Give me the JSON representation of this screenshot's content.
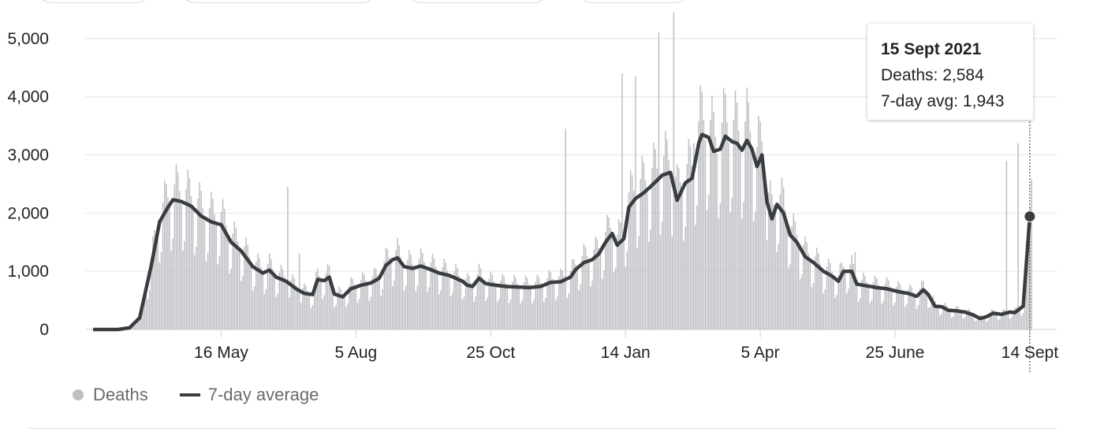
{
  "chart_data": {
    "type": "bar",
    "title": "",
    "xlabel": "",
    "ylabel": "",
    "ylim": [
      0,
      5500
    ],
    "y_ticks": [
      0,
      1000,
      2000,
      3000,
      4000,
      5000
    ],
    "y_tick_labels": [
      "0",
      "1,000",
      "2,000",
      "3,000",
      "4,000",
      "5,000"
    ],
    "x_range": [
      "2020-02-29",
      "2021-09-15"
    ],
    "x_ticks": [
      {
        "date": "2020-05-16",
        "label": "16 May"
      },
      {
        "date": "2020-08-05",
        "label": "5 Aug"
      },
      {
        "date": "2020-10-25",
        "label": "25 Oct"
      },
      {
        "date": "2021-01-14",
        "label": "14 Jan"
      },
      {
        "date": "2021-04-05",
        "label": "5 Apr"
      },
      {
        "date": "2021-06-25",
        "label": "25 June"
      },
      {
        "date": "2021-09-14",
        "label": "14 Sept"
      }
    ],
    "grid": true,
    "legend_position": "bottom-left",
    "colors": {
      "bars": "#bdbfc3",
      "line": "#3a3d40",
      "grid": "#e6e6e6"
    },
    "series": [
      {
        "name": "Deaths",
        "type": "bar",
        "note_resolution": "daily values derived from the 7-day average plus a weekly reporting pattern and visible spikes",
        "spikes": [
          {
            "date": "2020-06-25",
            "value": 2450
          },
          {
            "date": "2020-07-02",
            "value": 1300
          },
          {
            "date": "2020-12-09",
            "value": 3450
          },
          {
            "date": "2021-01-12",
            "value": 4400
          },
          {
            "date": "2021-01-20",
            "value": 4350
          },
          {
            "date": "2021-02-03",
            "value": 5100
          },
          {
            "date": "2021-02-12",
            "value": 5450
          },
          {
            "date": "2021-02-24",
            "value": 3200
          },
          {
            "date": "2021-04-08",
            "value": 2550
          },
          {
            "date": "2021-06-01",
            "value": 1330
          },
          {
            "date": "2021-08-31",
            "value": 2900
          },
          {
            "date": "2021-09-07",
            "value": 3200
          },
          {
            "date": "2021-09-15",
            "value": 2584
          }
        ]
      },
      {
        "name": "7-day average",
        "type": "line",
        "points": [
          [
            "2020-02-29",
            0
          ],
          [
            "2020-03-15",
            0
          ],
          [
            "2020-03-22",
            30
          ],
          [
            "2020-03-28",
            200
          ],
          [
            "2020-04-04",
            1100
          ],
          [
            "2020-04-09",
            1850
          ],
          [
            "2020-04-14",
            2100
          ],
          [
            "2020-04-17",
            2230
          ],
          [
            "2020-04-22",
            2200
          ],
          [
            "2020-04-28",
            2120
          ],
          [
            "2020-05-04",
            1950
          ],
          [
            "2020-05-10",
            1850
          ],
          [
            "2020-05-16",
            1800
          ],
          [
            "2020-05-22",
            1500
          ],
          [
            "2020-05-28",
            1350
          ],
          [
            "2020-06-04",
            1080
          ],
          [
            "2020-06-10",
            970
          ],
          [
            "2020-06-14",
            1020
          ],
          [
            "2020-06-18",
            900
          ],
          [
            "2020-06-24",
            830
          ],
          [
            "2020-06-30",
            700
          ],
          [
            "2020-07-05",
            620
          ],
          [
            "2020-07-10",
            600
          ],
          [
            "2020-07-13",
            860
          ],
          [
            "2020-07-17",
            840
          ],
          [
            "2020-07-20",
            900
          ],
          [
            "2020-07-23",
            610
          ],
          [
            "2020-07-28",
            560
          ],
          [
            "2020-08-02",
            700
          ],
          [
            "2020-08-08",
            760
          ],
          [
            "2020-08-14",
            800
          ],
          [
            "2020-08-19",
            880
          ],
          [
            "2020-08-23",
            1100
          ],
          [
            "2020-08-27",
            1200
          ],
          [
            "2020-08-30",
            1230
          ],
          [
            "2020-09-03",
            1080
          ],
          [
            "2020-09-08",
            1050
          ],
          [
            "2020-09-13",
            1090
          ],
          [
            "2020-09-18",
            1040
          ],
          [
            "2020-09-24",
            970
          ],
          [
            "2020-09-30",
            930
          ],
          [
            "2020-10-04",
            880
          ],
          [
            "2020-10-08",
            830
          ],
          [
            "2020-10-11",
            760
          ],
          [
            "2020-10-14",
            740
          ],
          [
            "2020-10-18",
            880
          ],
          [
            "2020-10-22",
            790
          ],
          [
            "2020-10-28",
            760
          ],
          [
            "2020-11-03",
            740
          ],
          [
            "2020-11-10",
            730
          ],
          [
            "2020-11-17",
            720
          ],
          [
            "2020-11-24",
            740
          ],
          [
            "2020-11-30",
            810
          ],
          [
            "2020-12-06",
            820
          ],
          [
            "2020-12-12",
            900
          ],
          [
            "2020-12-15",
            1030
          ],
          [
            "2020-12-20",
            1150
          ],
          [
            "2020-12-25",
            1200
          ],
          [
            "2020-12-29",
            1300
          ],
          [
            "2021-01-02",
            1500
          ],
          [
            "2021-01-06",
            1650
          ],
          [
            "2021-01-09",
            1450
          ],
          [
            "2021-01-13",
            1560
          ],
          [
            "2021-01-16",
            2100
          ],
          [
            "2021-01-20",
            2250
          ],
          [
            "2021-01-25",
            2350
          ],
          [
            "2021-01-30",
            2480
          ],
          [
            "2021-02-05",
            2650
          ],
          [
            "2021-02-10",
            2700
          ],
          [
            "2021-02-14",
            2220
          ],
          [
            "2021-02-19",
            2520
          ],
          [
            "2021-02-23",
            2600
          ],
          [
            "2021-02-27",
            3200
          ],
          [
            "2021-03-01",
            3350
          ],
          [
            "2021-03-05",
            3300
          ],
          [
            "2021-03-08",
            3060
          ],
          [
            "2021-03-12",
            3100
          ],
          [
            "2021-03-15",
            3320
          ],
          [
            "2021-03-19",
            3230
          ],
          [
            "2021-03-22",
            3200
          ],
          [
            "2021-03-25",
            3080
          ],
          [
            "2021-03-28",
            3250
          ],
          [
            "2021-03-31",
            3100
          ],
          [
            "2021-04-03",
            2800
          ],
          [
            "2021-04-06",
            3000
          ],
          [
            "2021-04-09",
            2200
          ],
          [
            "2021-04-12",
            1900
          ],
          [
            "2021-04-15",
            2150
          ],
          [
            "2021-04-19",
            2000
          ],
          [
            "2021-04-23",
            1620
          ],
          [
            "2021-04-27",
            1500
          ],
          [
            "2021-05-02",
            1250
          ],
          [
            "2021-05-07",
            1150
          ],
          [
            "2021-05-13",
            1000
          ],
          [
            "2021-05-18",
            920
          ],
          [
            "2021-05-22",
            830
          ],
          [
            "2021-05-25",
            1000
          ],
          [
            "2021-05-30",
            1000
          ],
          [
            "2021-06-02",
            780
          ],
          [
            "2021-06-08",
            750
          ],
          [
            "2021-06-14",
            720
          ],
          [
            "2021-06-20",
            700
          ],
          [
            "2021-06-27",
            650
          ],
          [
            "2021-07-03",
            620
          ],
          [
            "2021-07-08",
            570
          ],
          [
            "2021-07-12",
            680
          ],
          [
            "2021-07-15",
            600
          ],
          [
            "2021-07-19",
            400
          ],
          [
            "2021-07-23",
            390
          ],
          [
            "2021-07-27",
            330
          ],
          [
            "2021-08-01",
            320
          ],
          [
            "2021-08-06",
            300
          ],
          [
            "2021-08-11",
            250
          ],
          [
            "2021-08-15",
            190
          ],
          [
            "2021-08-19",
            220
          ],
          [
            "2021-08-23",
            280
          ],
          [
            "2021-08-28",
            260
          ],
          [
            "2021-09-02",
            300
          ],
          [
            "2021-09-05",
            290
          ],
          [
            "2021-09-10",
            400
          ],
          [
            "2021-09-14",
            1943
          ]
        ]
      }
    ]
  },
  "tooltip": {
    "date": "15 Sept 2021",
    "deaths_label": "Deaths: 2,584",
    "avg_label": "7-day avg: 1,943"
  },
  "legend": {
    "deaths": "Deaths",
    "avg": "7-day average"
  }
}
